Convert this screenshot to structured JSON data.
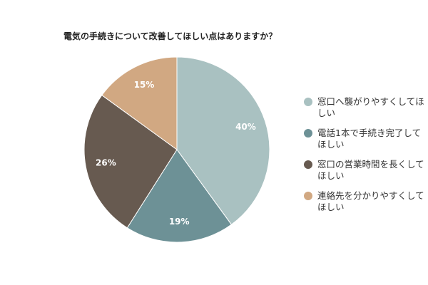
{
  "chart_data": {
    "type": "pie",
    "title": "電気の手続きについて改善してほしい点はありますか？",
    "categories": [
      "窓口へ襲がりやすくしてほしい",
      "電話1本で手続き完了してほしい",
      "窓口の営業時間を長くしてほしい",
      "連絡先を分かりやすくしてほしい"
    ],
    "values": [
      40,
      19,
      26,
      15
    ],
    "value_labels": [
      "40%",
      "19%",
      "26%",
      "15%"
    ],
    "colors": [
      "#a9c1c1",
      "#6d9196",
      "#675a50",
      "#d1a882"
    ],
    "legend_position": "right"
  }
}
